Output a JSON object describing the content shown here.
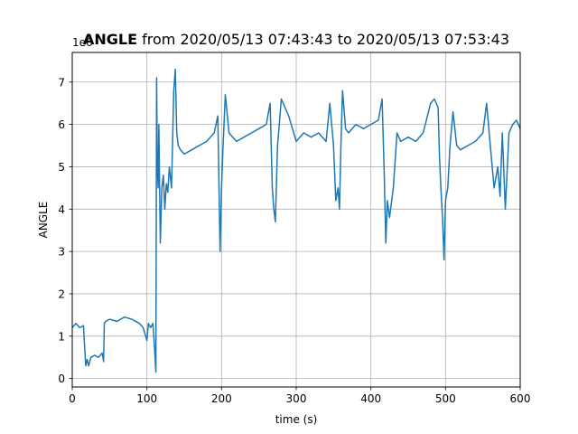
{
  "chart_data": {
    "type": "line",
    "title_bold": "ANGLE",
    "title_rest": " from 2020/05/13 07:43:43 to 2020/05/13 07:53:43",
    "xlabel": "time (s)",
    "ylabel": "ANGLE",
    "y_offset_label": "1e6",
    "xlim": [
      0,
      600
    ],
    "ylim": [
      -0.2,
      7.7
    ],
    "x_ticks": [
      0,
      100,
      200,
      300,
      400,
      500,
      600
    ],
    "y_ticks": [
      0,
      1,
      2,
      3,
      4,
      5,
      6,
      7
    ],
    "grid": true,
    "line_color": "#1f77b4",
    "series": [
      {
        "x": [
          0,
          5,
          10,
          15,
          17,
          18,
          20,
          22,
          25,
          30,
          35,
          40,
          42,
          43,
          45,
          50,
          60,
          70,
          80,
          90,
          95,
          100,
          102,
          105,
          108,
          110,
          112,
          113,
          114,
          115,
          116,
          118,
          120,
          122,
          124,
          126,
          128,
          130,
          133,
          136,
          138,
          140,
          142,
          145,
          150,
          160,
          170,
          180,
          190,
          195,
          197,
          198,
          200,
          202,
          205,
          210,
          215,
          220,
          230,
          240,
          250,
          260,
          265,
          268,
          270,
          272,
          275,
          280,
          290,
          300,
          310,
          320,
          330,
          340,
          345,
          350,
          353,
          356,
          358,
          360,
          362,
          366,
          370,
          375,
          380,
          390,
          400,
          410,
          415,
          418,
          420,
          422,
          425,
          430,
          435,
          440,
          450,
          460,
          470,
          480,
          485,
          490,
          492,
          494,
          496,
          498,
          500,
          503,
          506,
          510,
          515,
          520,
          530,
          540,
          550,
          555,
          560,
          565,
          570,
          573,
          576,
          580,
          585,
          590,
          595,
          600
        ],
        "y": [
          1.2,
          1.3,
          1.2,
          1.25,
          0.6,
          0.3,
          0.45,
          0.3,
          0.5,
          0.55,
          0.5,
          0.6,
          0.4,
          1.3,
          1.35,
          1.4,
          1.35,
          1.45,
          1.4,
          1.3,
          1.2,
          0.9,
          1.3,
          1.2,
          1.3,
          0.8,
          0.15,
          7.1,
          5.0,
          4.5,
          6.0,
          3.2,
          4.5,
          4.8,
          4.0,
          4.6,
          4.4,
          5.0,
          4.5,
          6.8,
          7.3,
          5.8,
          5.5,
          5.4,
          5.3,
          5.4,
          5.5,
          5.6,
          5.8,
          6.2,
          4.0,
          3.0,
          4.5,
          5.5,
          6.7,
          5.8,
          5.7,
          5.6,
          5.7,
          5.8,
          5.9,
          6.0,
          6.5,
          4.5,
          4.0,
          3.7,
          5.5,
          6.6,
          6.2,
          5.6,
          5.8,
          5.7,
          5.8,
          5.6,
          6.5,
          5.5,
          4.2,
          4.5,
          4.0,
          5.6,
          6.8,
          5.9,
          5.8,
          5.9,
          6.0,
          5.9,
          6.0,
          6.1,
          6.6,
          4.8,
          3.2,
          4.2,
          3.8,
          4.5,
          5.8,
          5.6,
          5.7,
          5.6,
          5.8,
          6.5,
          6.6,
          6.4,
          5.2,
          4.4,
          3.8,
          2.8,
          4.2,
          4.5,
          5.5,
          6.3,
          5.5,
          5.4,
          5.5,
          5.6,
          5.8,
          6.5,
          5.5,
          4.5,
          5.0,
          4.3,
          5.8,
          4.0,
          5.8,
          6.0,
          6.1,
          5.9
        ]
      }
    ]
  }
}
